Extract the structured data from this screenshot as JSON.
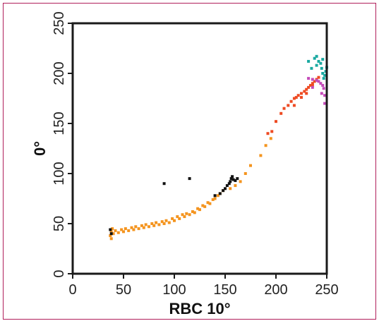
{
  "colors": {
    "frame_border": "#b01e5a",
    "axis": "#1a1a1a",
    "orange": "#f4941e",
    "red": "#ee4a22",
    "black": "#111111",
    "teal": "#1aa9a1",
    "magenta": "#c44ab9"
  },
  "chart_data": {
    "type": "scatter",
    "title": "",
    "xlabel": "RBC 10°",
    "ylabel": "0°",
    "xlim": [
      0,
      250
    ],
    "ylim": [
      0,
      250
    ],
    "xticks": [
      0,
      50,
      100,
      150,
      200,
      250
    ],
    "yticks": [
      0,
      50,
      100,
      150,
      200,
      250
    ],
    "grid": false,
    "legend": "none",
    "series": [
      {
        "color": "#f4941e",
        "points": [
          [
            37,
            38
          ],
          [
            38,
            42
          ],
          [
            38,
            35
          ],
          [
            39,
            45
          ],
          [
            40,
            40
          ],
          [
            42,
            43
          ],
          [
            45,
            41
          ],
          [
            48,
            44
          ],
          [
            50,
            42
          ],
          [
            52,
            45
          ],
          [
            55,
            43
          ],
          [
            58,
            46
          ],
          [
            60,
            44
          ],
          [
            62,
            47
          ],
          [
            65,
            45
          ],
          [
            68,
            48
          ],
          [
            70,
            46
          ],
          [
            72,
            49
          ],
          [
            75,
            47
          ],
          [
            78,
            50
          ],
          [
            80,
            48
          ],
          [
            82,
            51
          ],
          [
            85,
            49
          ],
          [
            88,
            52
          ],
          [
            90,
            50
          ],
          [
            92,
            53
          ],
          [
            95,
            51
          ],
          [
            98,
            55
          ],
          [
            100,
            53
          ],
          [
            103,
            57
          ],
          [
            105,
            55
          ],
          [
            108,
            59
          ],
          [
            110,
            57
          ],
          [
            112,
            60
          ],
          [
            115,
            59
          ],
          [
            118,
            62
          ],
          [
            120,
            61
          ],
          [
            123,
            65
          ],
          [
            125,
            64
          ],
          [
            128,
            68
          ],
          [
            130,
            67
          ],
          [
            133,
            71
          ],
          [
            135,
            70
          ],
          [
            138,
            74
          ],
          [
            140,
            75
          ],
          [
            143,
            78
          ],
          [
            145,
            80
          ],
          [
            148,
            83
          ],
          [
            155,
            85
          ],
          [
            160,
            88
          ],
          [
            165,
            92
          ],
          [
            170,
            100
          ],
          [
            175,
            108
          ],
          [
            185,
            118
          ],
          [
            190,
            128
          ],
          [
            195,
            135
          ]
        ]
      },
      {
        "color": "#ee4a22",
        "points": [
          [
            192,
            140
          ],
          [
            196,
            142
          ],
          [
            200,
            152
          ],
          [
            205,
            160
          ],
          [
            208,
            165
          ],
          [
            212,
            168
          ],
          [
            215,
            172
          ],
          [
            218,
            175
          ],
          [
            220,
            176
          ],
          [
            222,
            178
          ],
          [
            225,
            180
          ],
          [
            228,
            182
          ],
          [
            230,
            184
          ],
          [
            232,
            186
          ],
          [
            234,
            188
          ],
          [
            236,
            190
          ],
          [
            238,
            192
          ],
          [
            240,
            194
          ],
          [
            242,
            196
          ],
          [
            218,
            168
          ],
          [
            225,
            176
          ],
          [
            230,
            180
          ],
          [
            236,
            188
          ]
        ]
      },
      {
        "color": "#111111",
        "points": [
          [
            37,
            44
          ],
          [
            38,
            40
          ],
          [
            90,
            90
          ],
          [
            115,
            95
          ],
          [
            140,
            78
          ],
          [
            145,
            80
          ],
          [
            148,
            83
          ],
          [
            150,
            85
          ],
          [
            152,
            88
          ],
          [
            154,
            90
          ],
          [
            155,
            92
          ],
          [
            156,
            95
          ],
          [
            157,
            97
          ],
          [
            158,
            94
          ],
          [
            160,
            93
          ],
          [
            162,
            95
          ]
        ]
      },
      {
        "color": "#1aa9a1",
        "points": [
          [
            232,
            212
          ],
          [
            235,
            205
          ],
          [
            238,
            215
          ],
          [
            240,
            217
          ],
          [
            242,
            212
          ],
          [
            244,
            210
          ],
          [
            245,
            205
          ],
          [
            246,
            200
          ],
          [
            247,
            195
          ],
          [
            248,
            198
          ],
          [
            249,
            202
          ],
          [
            250,
            206
          ],
          [
            246,
            214
          ],
          [
            240,
            208
          ]
        ]
      },
      {
        "color": "#c44ab9",
        "points": [
          [
            232,
            195
          ],
          [
            236,
            194
          ],
          [
            240,
            193
          ],
          [
            242,
            192
          ],
          [
            244,
            190
          ],
          [
            246,
            188
          ],
          [
            247,
            185
          ],
          [
            248,
            178
          ],
          [
            248,
            170
          ],
          [
            245,
            180
          ],
          [
            236,
            186
          ]
        ]
      }
    ]
  }
}
